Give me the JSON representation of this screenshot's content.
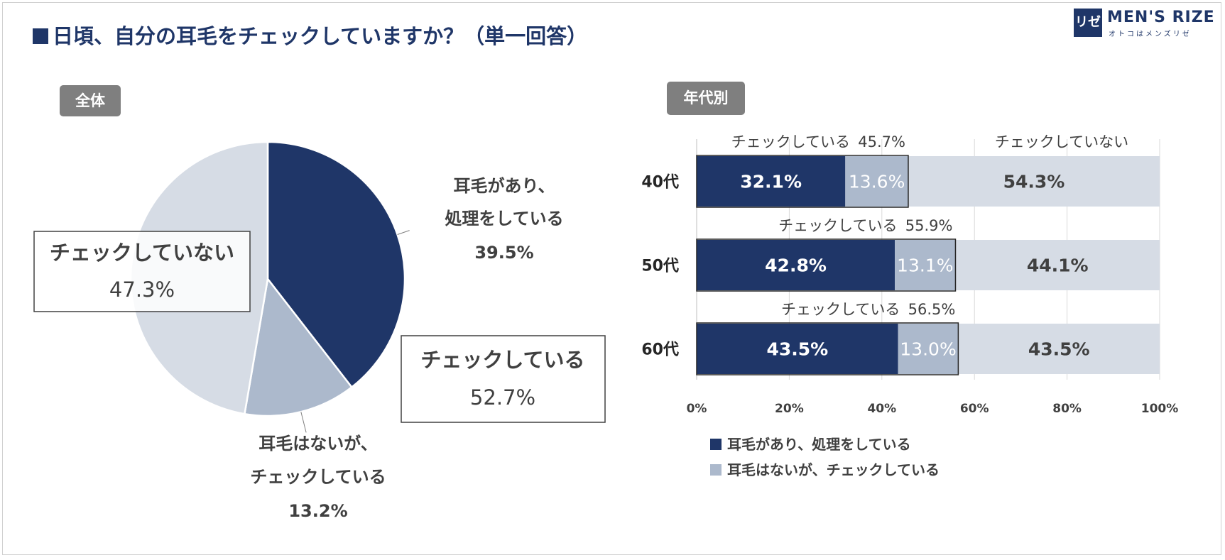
{
  "title": "日頃、自分の耳毛をチェックしていますか？（単一回答）",
  "logo": {
    "mark": "リゼ",
    "name": "MEN'S RIZE",
    "sub": "オトコはメンズリゼ"
  },
  "colors": {
    "navy": "#1f3668",
    "light_blue": "#acb9cc",
    "pale": "#d6dce5",
    "tag_gray": "#7f7f7f"
  },
  "chart_data": [
    {
      "type": "pie",
      "tag": "全体",
      "slices": [
        {
          "label_line1": "耳毛があり、",
          "label_line2": "処理をしている",
          "value": 39.5,
          "value_text": "39.5%",
          "color": "#1f3668"
        },
        {
          "label_line1": "耳毛はないが、",
          "label_line2": "チェックしている",
          "value": 13.2,
          "value_text": "13.2%",
          "color": "#acb9cc"
        },
        {
          "label_line1": "チェックしていない",
          "label_line2": "",
          "value": 47.3,
          "value_text": "47.3%",
          "color": "#d6dce5"
        }
      ],
      "annotations": {
        "checking": {
          "label": "チェックしている",
          "value_text": "52.7%"
        },
        "not_checking": {
          "label": "チェックしていない",
          "value_text": "47.3%"
        }
      }
    },
    {
      "type": "bar",
      "orientation": "horizontal-stacked-100",
      "tag": "年代別",
      "categories": [
        "40代",
        "50代",
        "60代"
      ],
      "series": [
        {
          "name": "耳毛があり、処理をしている",
          "values": [
            32.1,
            42.8,
            43.5
          ],
          "labels": [
            "32.1%",
            "42.8%",
            "43.5%"
          ],
          "color": "#1f3668"
        },
        {
          "name": "耳毛はないが、チェックしている",
          "values": [
            13.6,
            13.1,
            13.0
          ],
          "labels": [
            "13.6%",
            "13.1%",
            "13.0%"
          ],
          "color": "#acb9cc"
        },
        {
          "name": "チェックしていない",
          "values": [
            54.3,
            44.1,
            43.5
          ],
          "labels": [
            "54.3%",
            "44.1%",
            "43.5%"
          ],
          "color": "#d6dce5"
        }
      ],
      "checking_label": "チェックしている",
      "checking_totals": [
        "45.7%",
        "55.9%",
        "56.5%"
      ],
      "not_checking_label": "チェックしていない",
      "x_ticks": [
        "0%",
        "20%",
        "40%",
        "60%",
        "80%",
        "100%"
      ],
      "xlim": [
        0,
        100
      ],
      "legend": [
        "耳毛があり、処理をしている",
        "耳毛はないが、チェックしている"
      ]
    }
  ]
}
